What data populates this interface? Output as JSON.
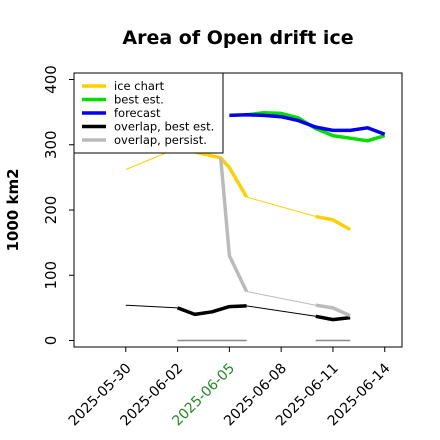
{
  "chart_data": {
    "type": "line",
    "title": "Area of Open drift ice",
    "ylabel": "1000 km2",
    "xlabel": "",
    "xlim": [
      "2025-05-27",
      "2025-06-15"
    ],
    "ylim": [
      -10,
      410
    ],
    "yticks": [
      0,
      100,
      200,
      300,
      400
    ],
    "xticks": [
      "2025-05-30",
      "2025-06-02",
      "2025-06-05",
      "2025-06-08",
      "2025-06-11",
      "2025-06-14"
    ],
    "highlight_tick": "2025-06-05",
    "highlight_color": "#228B22",
    "grid": false,
    "legend_position": "top-left",
    "series": [
      {
        "name": "ice chart",
        "color": "#FFD000",
        "segments": [
          {
            "x": [
              "2025-06-02",
              "2025-06-04.5",
              "2025-06-05",
              "2025-06-06"
            ],
            "y": [
              295,
              280,
              265,
              220
            ],
            "width": 3.5
          },
          {
            "x": [
              "2025-06-10",
              "2025-06-11",
              "2025-06-12"
            ],
            "y": [
              190,
              185,
              170
            ],
            "width": 3.5
          }
        ],
        "thin": [
          {
            "x": [
              "2025-05-30",
              "2025-06-02"
            ],
            "y": [
              262,
              295
            ]
          },
          {
            "x": [
              "2025-06-06",
              "2025-06-10"
            ],
            "y": [
              220,
              190
            ]
          }
        ]
      },
      {
        "name": "best est.",
        "color": "#00DD00",
        "segments": [
          {
            "x": [
              "2025-06-06",
              "2025-06-07",
              "2025-06-08",
              "2025-06-09",
              "2025-06-10",
              "2025-06-11",
              "2025-06-12",
              "2025-06-13",
              "2025-06-14"
            ],
            "y": [
              346,
              349,
              348,
              341,
              325,
              314,
              310,
              306,
              314
            ],
            "width": 3.5
          }
        ],
        "thin": []
      },
      {
        "name": "forecast",
        "color": "#0000EE",
        "segments": [
          {
            "x": [
              "2025-06-05",
              "2025-06-06",
              "2025-06-07",
              "2025-06-08",
              "2025-06-09",
              "2025-06-10",
              "2025-06-11",
              "2025-06-12",
              "2025-06-13",
              "2025-06-14"
            ],
            "y": [
              345,
              346,
              345,
              343,
              337,
              327,
              322,
              322,
              326,
              316
            ],
            "width": 3.5
          }
        ],
        "thin": []
      },
      {
        "name": "overlap, best est.",
        "color": "#000000",
        "segments": [
          {
            "x": [
              "2025-06-02",
              "2025-06-03",
              "2025-06-04",
              "2025-06-05",
              "2025-06-06"
            ],
            "y": [
              50,
              40,
              44,
              52,
              53
            ],
            "width": 3.5
          },
          {
            "x": [
              "2025-06-10",
              "2025-06-11",
              "2025-06-12"
            ],
            "y": [
              37,
              32,
              35
            ],
            "width": 3.5
          }
        ],
        "thin": [
          {
            "x": [
              "2025-05-30",
              "2025-06-02"
            ],
            "y": [
              54,
              50
            ]
          },
          {
            "x": [
              "2025-06-06",
              "2025-06-10"
            ],
            "y": [
              53,
              37
            ]
          }
        ]
      },
      {
        "name": "overlap, persist.",
        "color": "#BBBBBB",
        "segments": [
          {
            "x": [
              "2025-06-04.5",
              "2025-06-05",
              "2025-06-06"
            ],
            "y": [
              280,
              130,
              75
            ],
            "width": 3.5
          },
          {
            "x": [
              "2025-06-10",
              "2025-06-11",
              "2025-06-12"
            ],
            "y": [
              54,
              50,
              38
            ],
            "width": 3.5
          }
        ],
        "thin": [
          {
            "x": [
              "2025-06-06",
              "2025-06-10"
            ],
            "y": [
              75,
              54
            ]
          }
        ]
      }
    ],
    "baseline_segments": [
      {
        "x": [
          "2025-06-02",
          "2025-06-06"
        ],
        "y": [
          0,
          0
        ],
        "color": "#888888"
      },
      {
        "x": [
          "2025-06-10",
          "2025-06-12"
        ],
        "y": [
          0,
          0
        ],
        "color": "#888888"
      }
    ]
  }
}
